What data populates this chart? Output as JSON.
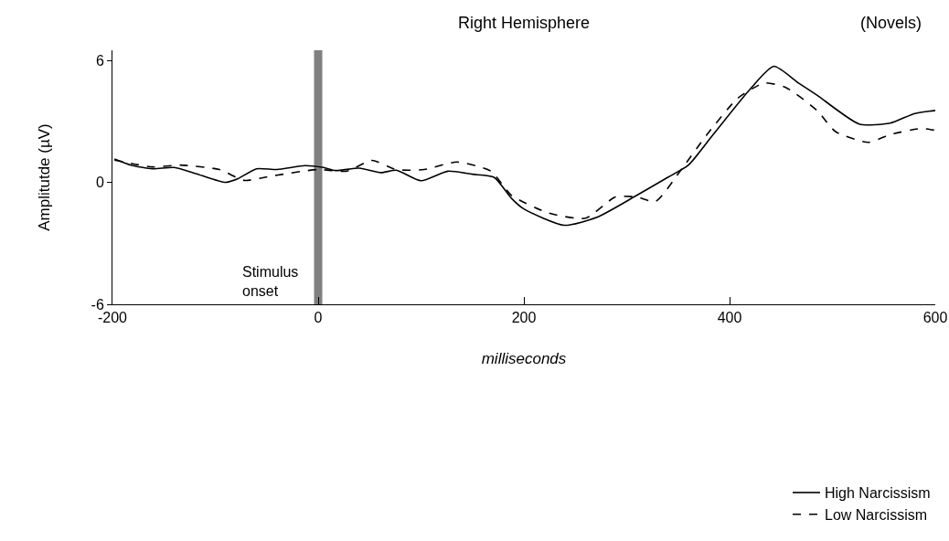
{
  "chart_data": {
    "type": "line",
    "title": "Right Hemisphere",
    "subtitle": "(Novels)",
    "xlabel": "milliseconds",
    "ylabel": "Amplitutde (µV)",
    "xlim": [
      -200,
      600
    ],
    "ylim": [
      -6,
      6.5
    ],
    "xticks": [
      -200,
      0,
      200,
      400,
      600
    ],
    "yticks": [
      -6,
      0,
      6
    ],
    "grid": false,
    "legend": "bottom right",
    "marker": "none",
    "series": [
      {
        "name": "High Narcissism",
        "color": "#000000",
        "line_style": "solid",
        "x": [
          -198,
          -182,
          -161,
          -140,
          -117,
          -90,
          -78,
          -60,
          -40,
          -13,
          5,
          17,
          40,
          61,
          76,
          100,
          126,
          150,
          171,
          188,
          200,
          239,
          271,
          307,
          340,
          360,
          384,
          420,
          443,
          467,
          485,
          526,
          556,
          580,
          600
        ],
        "values": [
          1.15,
          0.85,
          0.67,
          0.73,
          0.4,
          0,
          0.18,
          0.67,
          0.63,
          0.82,
          0.73,
          0.58,
          0.7,
          0.48,
          0.6,
          0.08,
          0.55,
          0.4,
          0.25,
          -0.79,
          -1.31,
          -2.11,
          -1.72,
          -0.72,
          0.25,
          0.85,
          2.35,
          4.59,
          5.71,
          4.89,
          4.29,
          2.87,
          2.91,
          3.39,
          3.54
        ]
      },
      {
        "name": "Low Narcissism",
        "color": "#000000",
        "line_style": "dashed",
        "x": [
          -198,
          -161,
          -134,
          -96,
          -72,
          -43,
          -1,
          28,
          52,
          76,
          103,
          135,
          168,
          188,
          224,
          260,
          289,
          310,
          328,
          354,
          378,
          408,
          434,
          455,
          485,
          503,
          535,
          556,
          586,
          600
        ],
        "values": [
          1.1,
          0.76,
          0.85,
          0.63,
          0.1,
          0.33,
          0.63,
          0.55,
          1.08,
          0.63,
          0.63,
          1.0,
          0.55,
          -0.64,
          -1.51,
          -1.76,
          -0.72,
          -0.72,
          -0.94,
          0.7,
          2.35,
          4.14,
          4.89,
          4.66,
          3.54,
          2.5,
          1.97,
          2.35,
          2.65,
          2.56
        ]
      }
    ],
    "bands": [
      {
        "axis": "x",
        "from": -4,
        "to": 4,
        "label": "Stimulus onset",
        "color": "#808080"
      }
    ]
  }
}
